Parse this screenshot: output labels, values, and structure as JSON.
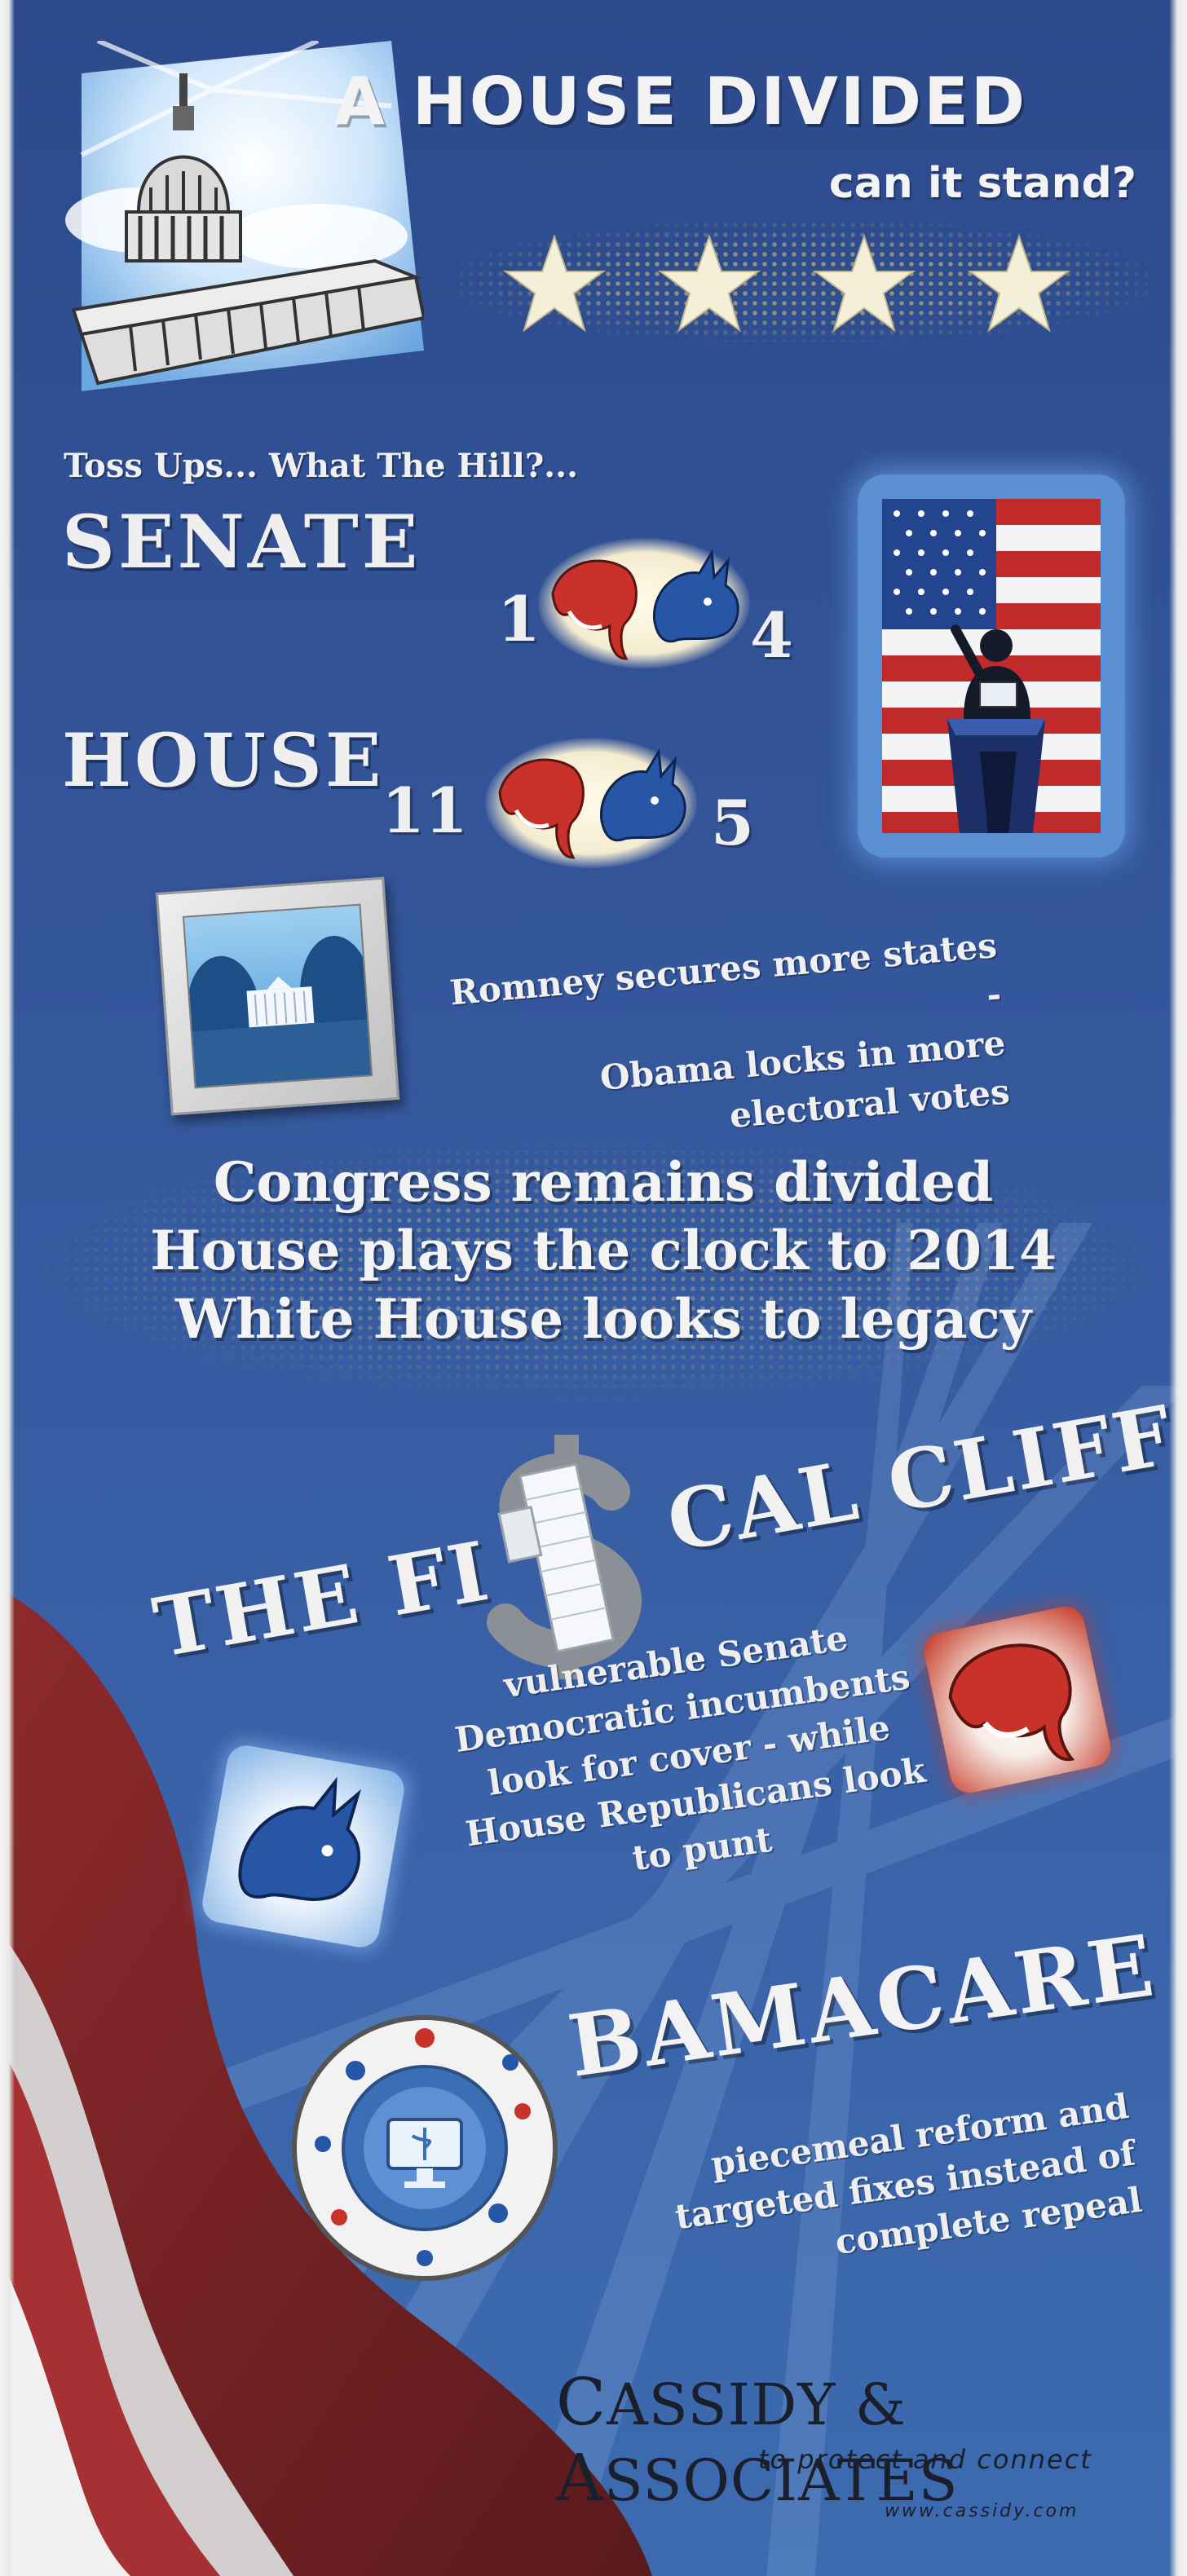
{
  "header": {
    "title": "A HOUSE DIVIDED",
    "subtitle": "can it stand?"
  },
  "tossups": {
    "heading": "Toss Ups... What The Hill?...",
    "senate": {
      "label": "SENATE",
      "republican_count": "1",
      "democrat_count": "4"
    },
    "house": {
      "label": "HOUSE",
      "republican_count": "11",
      "democrat_count": "5"
    }
  },
  "election": {
    "line1": "Romney secures more states -",
    "line2": "Obama locks in more",
    "line3": "electoral votes"
  },
  "outlook": {
    "line1": "Congress remains divided",
    "line2": "House plays the clock to 2014",
    "line3": "White House looks to legacy"
  },
  "fiscal_cliff": {
    "title_part1": "THE FI",
    "title_part2": "CAL CLIFF",
    "line1": "vulnerable Senate",
    "line2": "Democratic incumbents",
    "line3": "look for cover - while",
    "line4": "House Republicans look",
    "line5": "to punt"
  },
  "obamacare": {
    "title": "BAMACARE",
    "line1": "piecemeal reform and",
    "line2": "targeted fixes instead of",
    "line3": "complete repeal"
  },
  "footer": {
    "company_c": "C",
    "company_rest1": "ASSIDY ",
    "company_amp": "& ",
    "company_a": "A",
    "company_rest2": "SSOCIATES",
    "tagline": "to protect and connect",
    "url": "www.cassidy.com"
  },
  "colors": {
    "background_blue": "#2c4a8c",
    "republican_red": "#c8322a",
    "democrat_blue": "#2756a6",
    "text_light": "#f1f1f1",
    "footer_text": "#1a1f2b"
  },
  "icons": [
    "capitol-icon",
    "star-icon",
    "elephant-icon",
    "donkey-icon",
    "flag-podium-icon",
    "white-house-frame-icon",
    "dollar-sign-icon",
    "healthcare-wheel-icon"
  ]
}
